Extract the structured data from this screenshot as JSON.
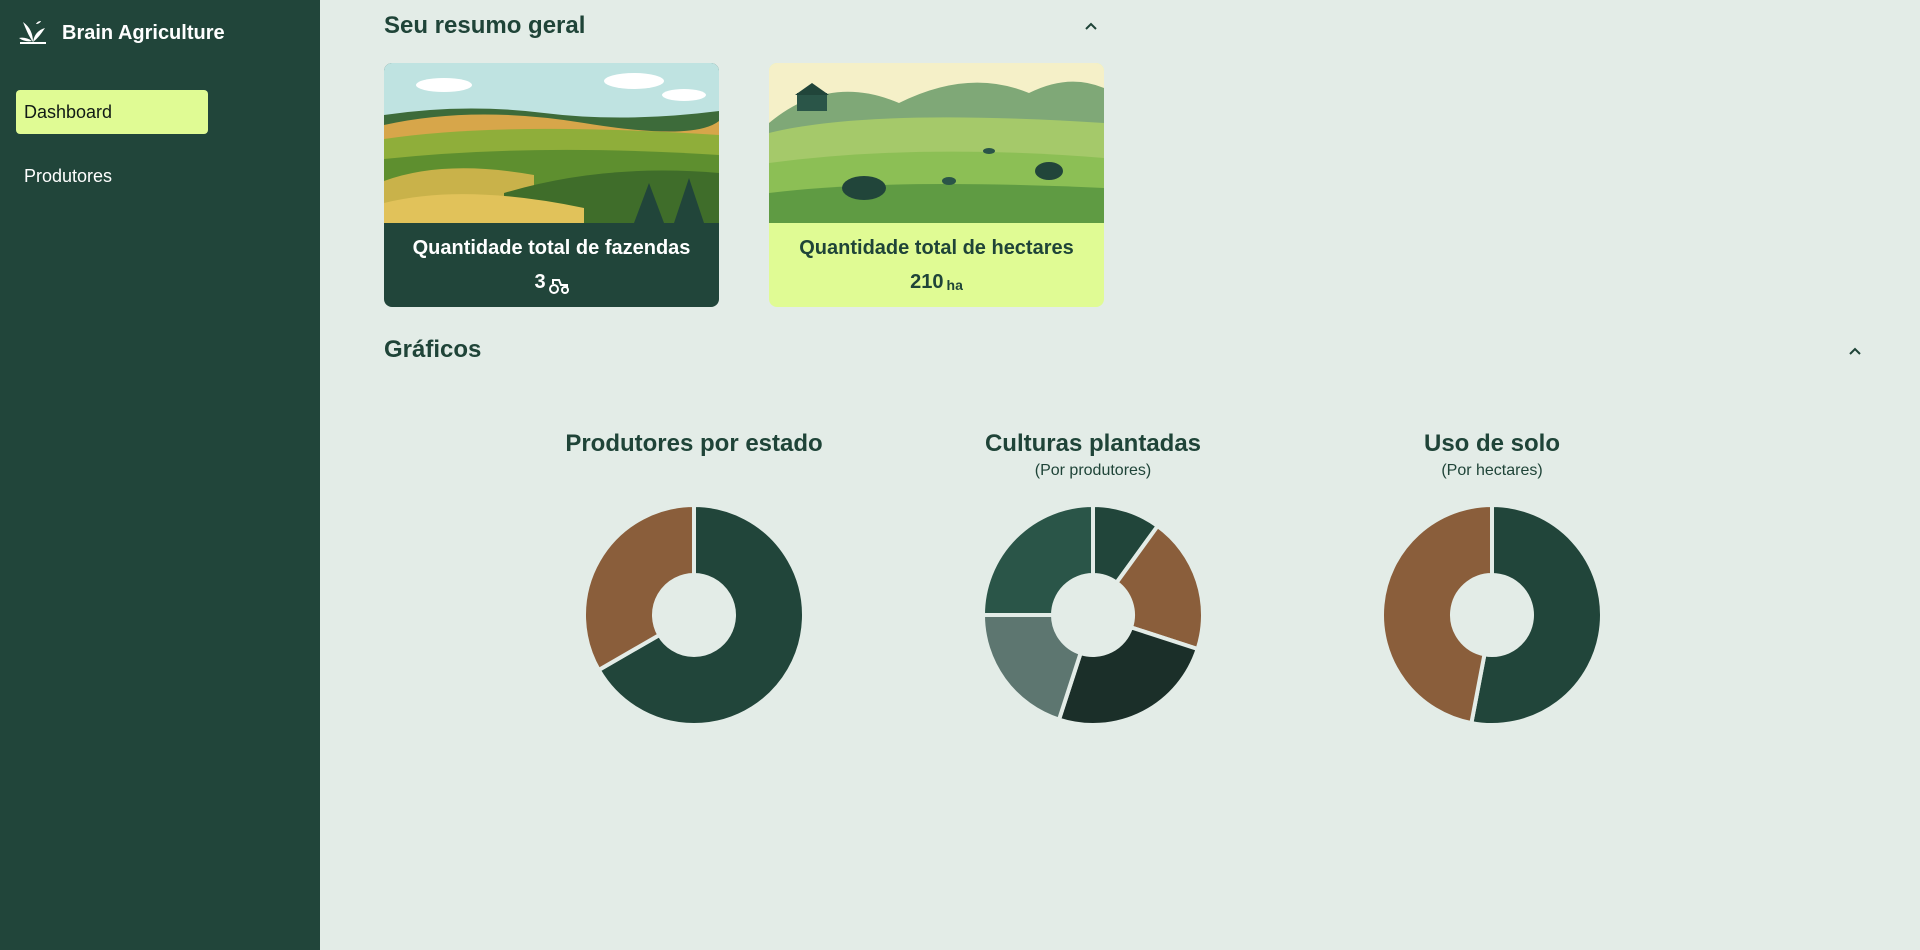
{
  "app": {
    "name": "Brain Agriculture"
  },
  "sidebar": {
    "items": [
      {
        "label": "Dashboard",
        "active": true
      },
      {
        "label": "Produtores",
        "active": false
      }
    ]
  },
  "summary": {
    "title": "Seu resumo geral",
    "cards": [
      {
        "title": "Quantidade total de fazendas",
        "value": "3",
        "icon": "tractor-icon"
      },
      {
        "title": "Quantidade total de hectares",
        "value": "210",
        "unit": "ha"
      }
    ]
  },
  "charts_section": {
    "title": "Gráficos"
  },
  "colors": {
    "sidebar": "#21453a",
    "accent": "#e0fb94",
    "background": "#e3ece7",
    "brown": "#8a5e3b",
    "dark_green": "#21453a",
    "mid_green": "#2a5548",
    "gray_green": "#5d7670",
    "darkest_green": "#1b2f29"
  },
  "chart_data": [
    {
      "type": "pie",
      "title": "Produtores por estado",
      "subtitle": "",
      "slices": [
        {
          "value": 2,
          "color": "#21453a"
        },
        {
          "value": 1,
          "color": "#8a5e3b"
        }
      ]
    },
    {
      "type": "pie",
      "title": "Culturas plantadas",
      "subtitle": "(Por produtores)",
      "slices": [
        {
          "value": 1,
          "color": "#21453a"
        },
        {
          "value": 2,
          "color": "#8a5e3b"
        },
        {
          "value": 2.5,
          "color": "#1b2f29"
        },
        {
          "value": 2,
          "color": "#5d7670"
        },
        {
          "value": 2.5,
          "color": "#2a5548"
        }
      ]
    },
    {
      "type": "pie",
      "title": "Uso de solo",
      "subtitle": "(Por hectares)",
      "slices": [
        {
          "value": 53,
          "color": "#21453a"
        },
        {
          "value": 47,
          "color": "#8a5e3b"
        }
      ]
    }
  ]
}
